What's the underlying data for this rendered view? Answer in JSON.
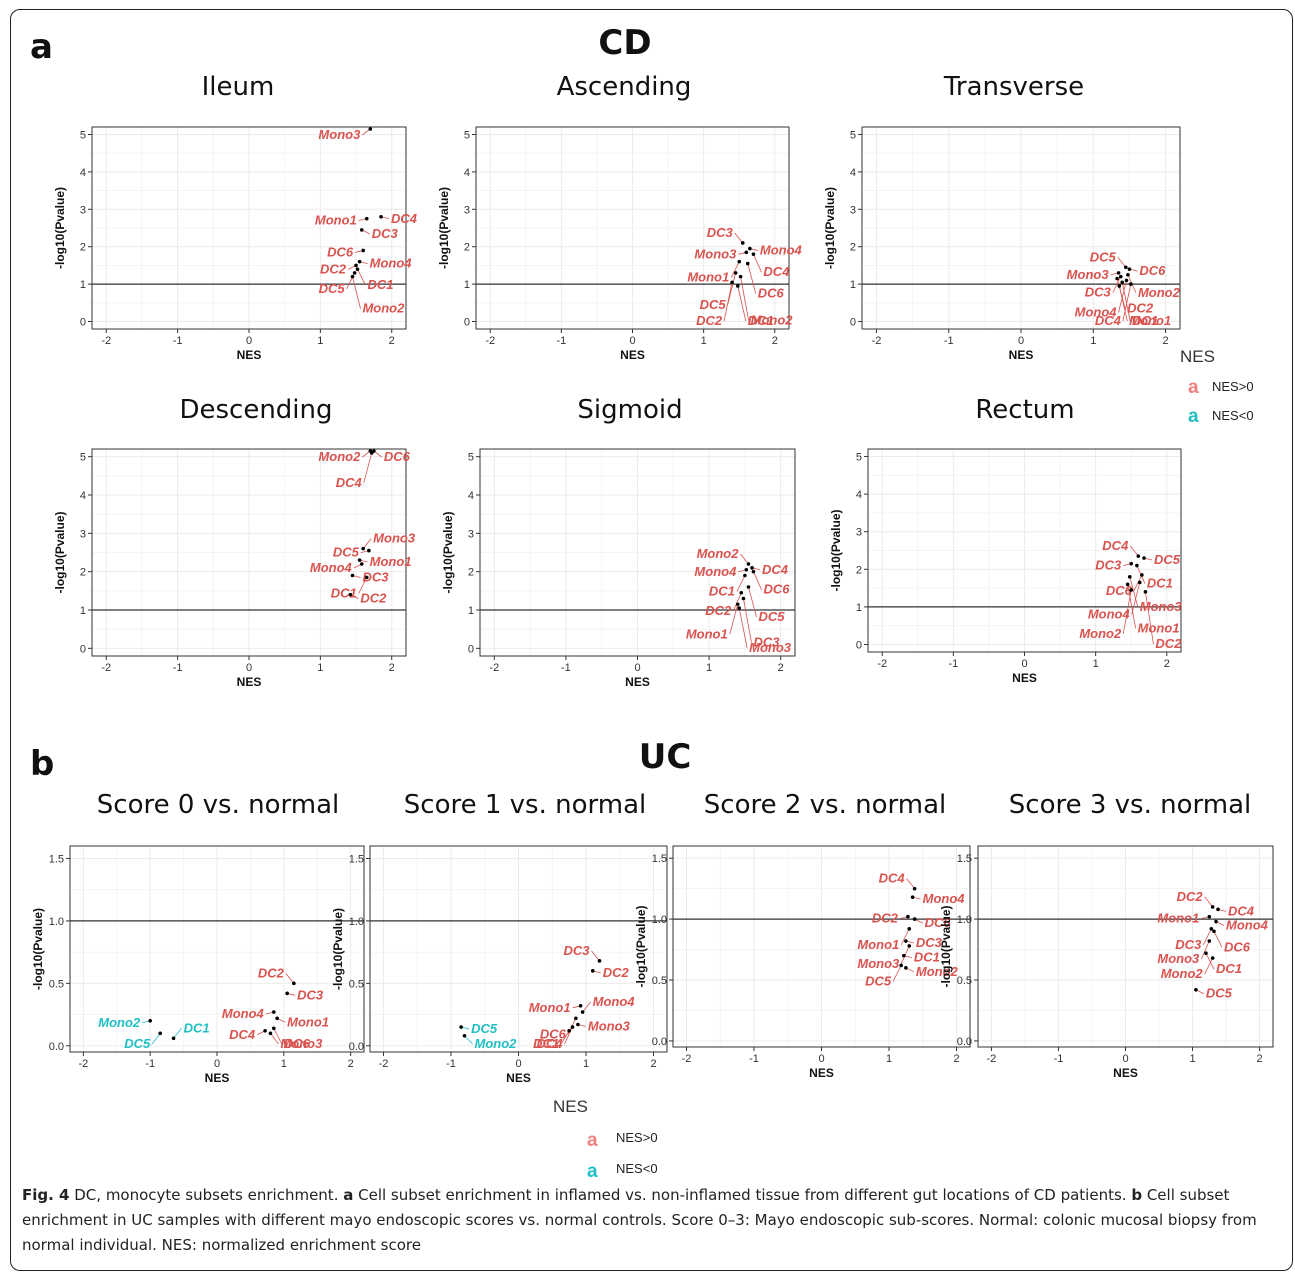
{
  "panel_letters": [
    "a",
    "b"
  ],
  "group_titles": {
    "cd": "CD",
    "uc": "UC"
  },
  "colors": {
    "pos": "#d9534f",
    "neg": "#1fbfc4",
    "point": "#000000",
    "grid": "#ebebeb",
    "hline": "#333333"
  },
  "legend": {
    "title": "NES",
    "key_glyph": "a",
    "items": [
      "NES>0",
      "NES<0"
    ]
  },
  "caption": {
    "label": "Fig. 4",
    "text": " DC, monocyte subsets enrichment. ",
    "a_label": "a",
    "a_text": " Cell subset enrichment in inflamed vs. non-inflamed tissue from different gut locations of CD patients. ",
    "b_label": "b",
    "b_text": " Cell subset enrichment in UC samples with different mayo endoscopic scores vs. normal controls. Score 0–3: Mayo endoscopic sub-scores. Normal: colonic mucosal biopsy from normal individual. NES: normalized enrichment score"
  },
  "chart_data": [
    {
      "type": "scatter",
      "title": "Ileum",
      "xlabel": "NES",
      "ylabel": "-log10(Pvalue)",
      "xlim": [
        -2.2,
        2.2
      ],
      "ylim": [
        -0.2,
        5.2
      ],
      "xticks": [
        -2,
        -1,
        0,
        1,
        2
      ],
      "yticks": [
        0,
        1,
        2,
        3,
        4,
        5
      ],
      "hline": 1,
      "points": [
        {
          "label": "Mono3",
          "x": 1.7,
          "y": 5.2,
          "sign": "pos"
        },
        {
          "label": "Mono1",
          "x": 1.65,
          "y": 2.75,
          "sign": "pos"
        },
        {
          "label": "DC4",
          "x": 1.85,
          "y": 2.8,
          "sign": "pos"
        },
        {
          "label": "DC3",
          "x": 1.58,
          "y": 2.45,
          "sign": "pos"
        },
        {
          "label": "DC6",
          "x": 1.6,
          "y": 1.9,
          "sign": "pos"
        },
        {
          "label": "Mono4",
          "x": 1.55,
          "y": 1.6,
          "sign": "pos"
        },
        {
          "label": "DC2",
          "x": 1.5,
          "y": 1.5,
          "sign": "pos"
        },
        {
          "label": "DC1",
          "x": 1.52,
          "y": 1.4,
          "sign": "pos"
        },
        {
          "label": "DC5",
          "x": 1.48,
          "y": 1.3,
          "sign": "pos"
        },
        {
          "label": "Mono2",
          "x": 1.45,
          "y": 1.2,
          "sign": "pos"
        }
      ]
    },
    {
      "type": "scatter",
      "title": "Ascending",
      "xlabel": "NES",
      "ylabel": "-log10(Pvalue)",
      "xlim": [
        -2.2,
        2.2
      ],
      "ylim": [
        -0.2,
        5.2
      ],
      "xticks": [
        -2,
        -1,
        0,
        1,
        2
      ],
      "yticks": [
        0,
        1,
        2,
        3,
        4,
        5
      ],
      "hline": 1,
      "points": [
        {
          "label": "DC3",
          "x": 1.55,
          "y": 2.1,
          "sign": "pos"
        },
        {
          "label": "Mono4",
          "x": 1.65,
          "y": 1.95,
          "sign": "pos"
        },
        {
          "label": "Mono3",
          "x": 1.6,
          "y": 1.85,
          "sign": "pos"
        },
        {
          "label": "DC4",
          "x": 1.7,
          "y": 1.8,
          "sign": "pos"
        },
        {
          "label": "Mono1",
          "x": 1.5,
          "y": 1.6,
          "sign": "pos"
        },
        {
          "label": "DC6",
          "x": 1.62,
          "y": 1.55,
          "sign": "pos"
        },
        {
          "label": "DC5",
          "x": 1.45,
          "y": 1.3,
          "sign": "pos"
        },
        {
          "label": "Mono2",
          "x": 1.52,
          "y": 1.2,
          "sign": "pos"
        },
        {
          "label": "DC2",
          "x": 1.4,
          "y": 1.05,
          "sign": "pos"
        },
        {
          "label": "DC1",
          "x": 1.48,
          "y": 0.95,
          "sign": "pos"
        }
      ]
    },
    {
      "type": "scatter",
      "title": "Transverse",
      "xlabel": "NES",
      "ylabel": "-log10(Pvalue)",
      "xlim": [
        -2.2,
        2.2
      ],
      "ylim": [
        -0.2,
        5.2
      ],
      "xticks": [
        -2,
        -1,
        0,
        1,
        2
      ],
      "yticks": [
        0,
        1,
        2,
        3,
        4,
        5
      ],
      "hline": 1,
      "points": [
        {
          "label": "Mono3",
          "x": 1.35,
          "y": 1.3,
          "sign": "pos"
        },
        {
          "label": "DC5",
          "x": 1.45,
          "y": 1.45,
          "sign": "pos"
        },
        {
          "label": "DC6",
          "x": 1.5,
          "y": 1.4,
          "sign": "pos"
        },
        {
          "label": "DC3",
          "x": 1.38,
          "y": 1.2,
          "sign": "pos"
        },
        {
          "label": "Mono2",
          "x": 1.48,
          "y": 1.25,
          "sign": "pos"
        },
        {
          "label": "DC2",
          "x": 1.33,
          "y": 1.15,
          "sign": "pos"
        },
        {
          "label": "Mono4",
          "x": 1.46,
          "y": 1.1,
          "sign": "pos"
        },
        {
          "label": "DC1",
          "x": 1.4,
          "y": 1.05,
          "sign": "pos"
        },
        {
          "label": "DC4",
          "x": 1.52,
          "y": 1.0,
          "sign": "pos"
        },
        {
          "label": "Mono1",
          "x": 1.36,
          "y": 0.95,
          "sign": "pos"
        }
      ]
    },
    {
      "type": "scatter",
      "title": "Descending",
      "xlabel": "NES",
      "ylabel": "-log10(Pvalue)",
      "xlim": [
        -2.2,
        2.2
      ],
      "ylim": [
        -0.2,
        5.2
      ],
      "xticks": [
        -2,
        -1,
        0,
        1,
        2
      ],
      "yticks": [
        0,
        1,
        2,
        3,
        4,
        5
      ],
      "hline": 1,
      "points": [
        {
          "label": "Mono2",
          "x": 1.7,
          "y": 5.2,
          "sign": "pos"
        },
        {
          "label": "DC6",
          "x": 1.75,
          "y": 5.25,
          "sign": "pos"
        },
        {
          "label": "DC4",
          "x": 1.72,
          "y": 5.1,
          "sign": "pos"
        },
        {
          "label": "Mono3",
          "x": 1.6,
          "y": 2.6,
          "sign": "pos"
        },
        {
          "label": "DC5",
          "x": 1.68,
          "y": 2.55,
          "sign": "pos"
        },
        {
          "label": "Mono1",
          "x": 1.55,
          "y": 2.3,
          "sign": "pos"
        },
        {
          "label": "Mono4",
          "x": 1.58,
          "y": 2.2,
          "sign": "pos"
        },
        {
          "label": "DC3",
          "x": 1.45,
          "y": 1.9,
          "sign": "pos"
        },
        {
          "label": "DC1",
          "x": 1.65,
          "y": 1.85,
          "sign": "pos"
        },
        {
          "label": "DC2",
          "x": 1.42,
          "y": 1.4,
          "sign": "pos"
        }
      ]
    },
    {
      "type": "scatter",
      "title": "Sigmoid",
      "xlabel": "NES",
      "ylabel": "-log10(Pvalue)",
      "xlim": [
        -2.2,
        2.2
      ],
      "ylim": [
        -0.2,
        5.2
      ],
      "xticks": [
        -2,
        -1,
        0,
        1,
        2
      ],
      "yticks": [
        0,
        1,
        2,
        3,
        4,
        5
      ],
      "hline": 1,
      "points": [
        {
          "label": "Mono2",
          "x": 1.55,
          "y": 2.2,
          "sign": "pos"
        },
        {
          "label": "DC4",
          "x": 1.6,
          "y": 2.1,
          "sign": "pos"
        },
        {
          "label": "Mono4",
          "x": 1.52,
          "y": 2.05,
          "sign": "pos"
        },
        {
          "label": "DC6",
          "x": 1.62,
          "y": 2.0,
          "sign": "pos"
        },
        {
          "label": "DC1",
          "x": 1.5,
          "y": 1.9,
          "sign": "pos"
        },
        {
          "label": "DC5",
          "x": 1.55,
          "y": 1.6,
          "sign": "pos"
        },
        {
          "label": "DC2",
          "x": 1.45,
          "y": 1.45,
          "sign": "pos"
        },
        {
          "label": "DC3",
          "x": 1.48,
          "y": 1.3,
          "sign": "pos"
        },
        {
          "label": "Mono1",
          "x": 1.4,
          "y": 1.15,
          "sign": "pos"
        },
        {
          "label": "Mono3",
          "x": 1.42,
          "y": 1.05,
          "sign": "pos"
        }
      ]
    },
    {
      "type": "scatter",
      "title": "Rectum",
      "xlabel": "NES",
      "ylabel": "-log10(Pvalue)",
      "xlim": [
        -2.2,
        2.2
      ],
      "ylim": [
        -0.2,
        5.2
      ],
      "xticks": [
        -2,
        -1,
        0,
        1,
        2
      ],
      "yticks": [
        0,
        1,
        2,
        3,
        4,
        5
      ],
      "hline": 1,
      "points": [
        {
          "label": "DC4",
          "x": 1.6,
          "y": 2.35,
          "sign": "pos"
        },
        {
          "label": "DC5",
          "x": 1.68,
          "y": 2.3,
          "sign": "pos"
        },
        {
          "label": "DC3",
          "x": 1.5,
          "y": 2.15,
          "sign": "pos"
        },
        {
          "label": "DC1",
          "x": 1.58,
          "y": 2.1,
          "sign": "pos"
        },
        {
          "label": "DC6",
          "x": 1.65,
          "y": 1.85,
          "sign": "pos"
        },
        {
          "label": "Mono3",
          "x": 1.48,
          "y": 1.8,
          "sign": "pos"
        },
        {
          "label": "Mono4",
          "x": 1.62,
          "y": 1.65,
          "sign": "pos"
        },
        {
          "label": "Mono1",
          "x": 1.45,
          "y": 1.6,
          "sign": "pos"
        },
        {
          "label": "Mono2",
          "x": 1.5,
          "y": 1.45,
          "sign": "pos"
        },
        {
          "label": "DC2",
          "x": 1.7,
          "y": 1.4,
          "sign": "pos"
        }
      ]
    },
    {
      "type": "scatter",
      "title": "Score 0 vs. normal",
      "xlabel": "NES",
      "ylabel": "-log10(Pvalue)",
      "xlim": [
        -2.2,
        2.2
      ],
      "ylim": [
        -0.05,
        1.6
      ],
      "xticks": [
        -2,
        -1,
        0,
        1,
        2
      ],
      "yticks": [
        0.0,
        0.5,
        1.0,
        1.5
      ],
      "hline": 1,
      "points": [
        {
          "label": "DC2",
          "x": 1.15,
          "y": 0.5,
          "sign": "pos"
        },
        {
          "label": "DC3",
          "x": 1.05,
          "y": 0.42,
          "sign": "pos"
        },
        {
          "label": "Mono4",
          "x": 0.85,
          "y": 0.27,
          "sign": "pos"
        },
        {
          "label": "Mono1",
          "x": 0.9,
          "y": 0.22,
          "sign": "pos"
        },
        {
          "label": "DC4",
          "x": 0.72,
          "y": 0.12,
          "sign": "pos"
        },
        {
          "label": "DC6",
          "x": 0.85,
          "y": 0.14,
          "sign": "pos"
        },
        {
          "label": "Mono3",
          "x": 0.8,
          "y": 0.1,
          "sign": "pos"
        },
        {
          "label": "Mono2",
          "x": -1.0,
          "y": 0.2,
          "sign": "neg"
        },
        {
          "label": "DC5",
          "x": -0.85,
          "y": 0.1,
          "sign": "neg"
        },
        {
          "label": "DC1",
          "x": -0.65,
          "y": 0.06,
          "sign": "neg"
        }
      ]
    },
    {
      "type": "scatter",
      "title": "Score 1 vs. normal",
      "xlabel": "NES",
      "ylabel": "-log10(Pvalue)",
      "xlim": [
        -2.2,
        2.2
      ],
      "ylim": [
        -0.05,
        1.6
      ],
      "xticks": [
        -2,
        -1,
        0,
        1,
        2
      ],
      "yticks": [
        0.0,
        0.5,
        1.0,
        1.5
      ],
      "hline": 1,
      "points": [
        {
          "label": "DC3",
          "x": 1.2,
          "y": 0.68,
          "sign": "pos"
        },
        {
          "label": "DC2",
          "x": 1.1,
          "y": 0.6,
          "sign": "pos"
        },
        {
          "label": "Mono1",
          "x": 0.92,
          "y": 0.32,
          "sign": "pos"
        },
        {
          "label": "Mono4",
          "x": 0.95,
          "y": 0.27,
          "sign": "pos"
        },
        {
          "label": "DC6",
          "x": 0.85,
          "y": 0.22,
          "sign": "pos"
        },
        {
          "label": "Mono3",
          "x": 0.88,
          "y": 0.17,
          "sign": "pos"
        },
        {
          "label": "DC1",
          "x": 0.75,
          "y": 0.12,
          "sign": "pos"
        },
        {
          "label": "DC4",
          "x": 0.8,
          "y": 0.15,
          "sign": "pos"
        },
        {
          "label": "DC5",
          "x": -0.85,
          "y": 0.15,
          "sign": "neg"
        },
        {
          "label": "Mono2",
          "x": -0.8,
          "y": 0.08,
          "sign": "neg"
        }
      ]
    },
    {
      "type": "scatter",
      "title": "Score 2 vs. normal",
      "xlabel": "NES",
      "ylabel": "-log10(Pvalue)",
      "xlim": [
        -2.2,
        2.2
      ],
      "ylim": [
        -0.05,
        1.6
      ],
      "xticks": [
        -2,
        -1,
        0,
        1,
        2
      ],
      "yticks": [
        0.0,
        0.5,
        1.0,
        1.5
      ],
      "hline": 1,
      "points": [
        {
          "label": "DC4",
          "x": 1.38,
          "y": 1.25,
          "sign": "pos"
        },
        {
          "label": "Mono4",
          "x": 1.35,
          "y": 1.18,
          "sign": "pos"
        },
        {
          "label": "DC2",
          "x": 1.28,
          "y": 1.02,
          "sign": "pos"
        },
        {
          "label": "DC6",
          "x": 1.38,
          "y": 1.0,
          "sign": "pos"
        },
        {
          "label": "Mono1",
          "x": 1.3,
          "y": 0.92,
          "sign": "pos"
        },
        {
          "label": "DC3",
          "x": 1.25,
          "y": 0.82,
          "sign": "pos"
        },
        {
          "label": "Mono3",
          "x": 1.3,
          "y": 0.78,
          "sign": "pos"
        },
        {
          "label": "DC1",
          "x": 1.22,
          "y": 0.7,
          "sign": "pos"
        },
        {
          "label": "DC5",
          "x": 1.18,
          "y": 0.62,
          "sign": "pos"
        },
        {
          "label": "Mono2",
          "x": 1.25,
          "y": 0.6,
          "sign": "pos"
        }
      ]
    },
    {
      "type": "scatter",
      "title": "Score 3 vs. normal",
      "xlabel": "NES",
      "ylabel": "-log10(Pvalue)",
      "xlim": [
        -2.2,
        2.2
      ],
      "ylim": [
        -0.05,
        1.6
      ],
      "xticks": [
        -2,
        -1,
        0,
        1,
        2
      ],
      "yticks": [
        0.0,
        0.5,
        1.0,
        1.5
      ],
      "hline": 1,
      "points": [
        {
          "label": "DC2",
          "x": 1.3,
          "y": 1.1,
          "sign": "pos"
        },
        {
          "label": "DC4",
          "x": 1.38,
          "y": 1.08,
          "sign": "pos"
        },
        {
          "label": "Mono1",
          "x": 1.25,
          "y": 1.02,
          "sign": "pos"
        },
        {
          "label": "Mono4",
          "x": 1.35,
          "y": 0.98,
          "sign": "pos"
        },
        {
          "label": "DC3",
          "x": 1.28,
          "y": 0.92,
          "sign": "pos"
        },
        {
          "label": "DC6",
          "x": 1.32,
          "y": 0.9,
          "sign": "pos"
        },
        {
          "label": "Mono3",
          "x": 1.25,
          "y": 0.82,
          "sign": "pos"
        },
        {
          "label": "DC1",
          "x": 1.2,
          "y": 0.72,
          "sign": "pos"
        },
        {
          "label": "Mono2",
          "x": 1.3,
          "y": 0.68,
          "sign": "pos"
        },
        {
          "label": "DC5",
          "x": 1.05,
          "y": 0.42,
          "sign": "pos"
        }
      ]
    }
  ]
}
